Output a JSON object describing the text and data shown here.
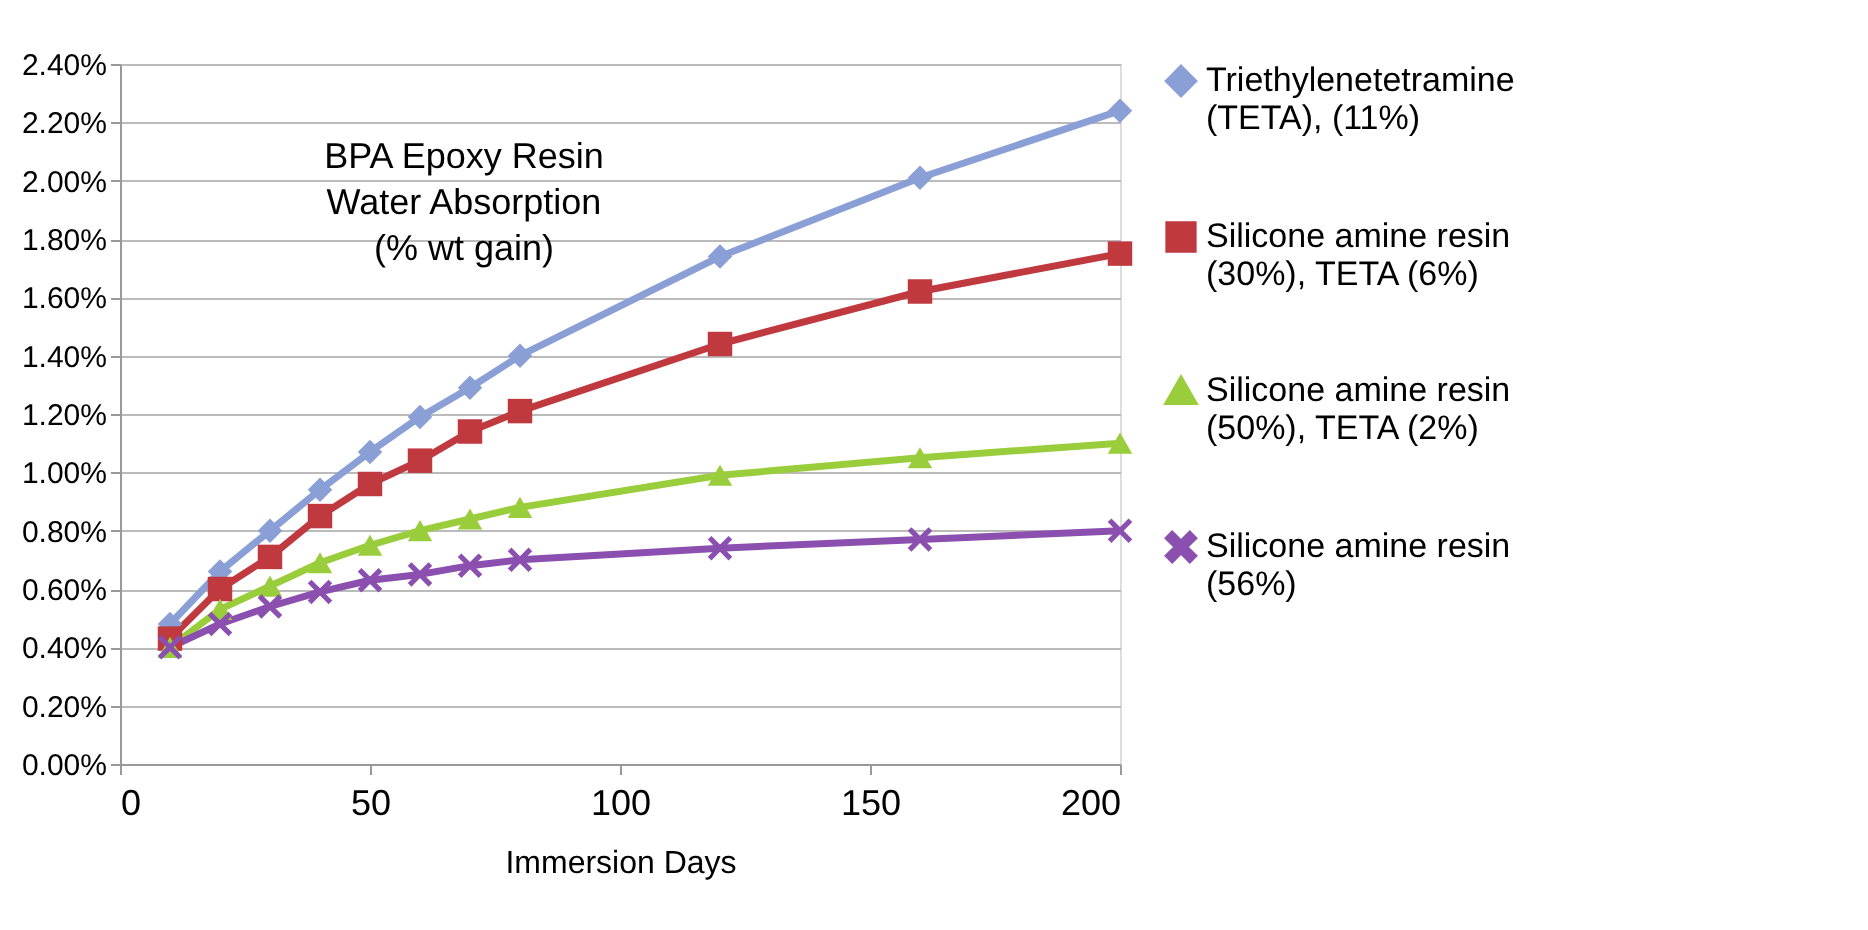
{
  "chart_data": {
    "type": "line",
    "title": [
      "BPA Epoxy Resin",
      "Water Absorption",
      "(% wt gain)"
    ],
    "xlabel": "Immersion Days",
    "x": [
      10,
      20,
      30,
      40,
      50,
      60,
      70,
      80,
      120,
      160,
      200
    ],
    "series": [
      {
        "name": "Triethylenetetramine\n(TETA), (11%)",
        "color": "#8a9fd6",
        "marker": "diamond",
        "values": [
          0.48,
          0.66,
          0.8,
          0.94,
          1.07,
          1.19,
          1.29,
          1.4,
          1.74,
          2.01,
          2.24
        ]
      },
      {
        "name": "Silicone amine resin\n(30%), TETA (6%)",
        "color": "#c0393e",
        "marker": "square",
        "values": [
          0.43,
          0.6,
          0.71,
          0.85,
          0.96,
          1.04,
          1.14,
          1.21,
          1.44,
          1.62,
          1.75
        ]
      },
      {
        "name": "Silicone amine resin\n(50%), TETA (2%)",
        "color": "#9acd3c",
        "marker": "triangle",
        "values": [
          0.4,
          0.53,
          0.61,
          0.69,
          0.75,
          0.8,
          0.84,
          0.88,
          0.99,
          1.05,
          1.1
        ]
      },
      {
        "name": "Silicone amine resin\n(56%)",
        "color": "#8b4fb0",
        "marker": "cross",
        "values": [
          0.4,
          0.48,
          0.54,
          0.59,
          0.63,
          0.65,
          0.68,
          0.7,
          0.74,
          0.77,
          0.8
        ]
      }
    ],
    "xlim": [
      0,
      200
    ],
    "xticks": [
      0,
      50,
      100,
      150,
      200
    ],
    "ylim": [
      0,
      2.4
    ],
    "yticks": [
      {
        "value": 0,
        "label": "0.00%"
      },
      {
        "value": 0.2,
        "label": "0.20%"
      },
      {
        "value": 0.4,
        "label": "0.40%"
      },
      {
        "value": 0.6,
        "label": "0.60%"
      },
      {
        "value": 0.8,
        "label": "0.80%"
      },
      {
        "value": 1.0,
        "label": "1.00%"
      },
      {
        "value": 1.2,
        "label": "1.20%"
      },
      {
        "value": 1.4,
        "label": "1.40%"
      },
      {
        "value": 1.6,
        "label": "1.60%"
      },
      {
        "value": 1.8,
        "label": "1.80%"
      },
      {
        "value": 2.0,
        "label": "2.00%"
      },
      {
        "value": 2.2,
        "label": "2.20%"
      },
      {
        "value": 2.4,
        "label": "2.40%"
      }
    ],
    "grid": "y",
    "legend": "right",
    "line_style": "solid"
  }
}
